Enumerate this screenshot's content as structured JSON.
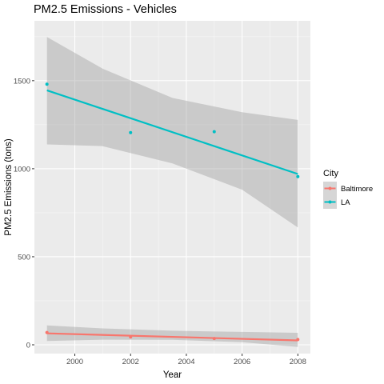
{
  "chart_data": {
    "type": "scatter",
    "title": "PM2.5 Emissions - Vehicles",
    "xlabel": "Year",
    "ylabel": "PM2.5 Emissions (tons)",
    "x_ticks": [
      2000,
      2002,
      2004,
      2006,
      2008
    ],
    "y_ticks": [
      0,
      500,
      1000,
      1500
    ],
    "xlim": [
      1998.55,
      2008.45
    ],
    "ylim": [
      -50,
      1840
    ],
    "grid": true,
    "legend": {
      "title": "City",
      "position": "right"
    },
    "series": [
      {
        "name": "Baltimore",
        "color": "#F8766D",
        "x": [
          1999,
          2002,
          2005,
          2008
        ],
        "y": [
          70,
          44,
          36,
          30
        ],
        "fit_line": {
          "x": [
            1999,
            2008
          ],
          "y": [
            65,
            25
          ]
        },
        "ribbon": {
          "x": [
            1999,
            2001,
            2003.5,
            2006,
            2008
          ],
          "upper": [
            110,
            93,
            80,
            73,
            68
          ],
          "lower": [
            22,
            29,
            28,
            15,
            -12
          ]
        }
      },
      {
        "name": "LA",
        "color": "#00BFC4",
        "x": [
          1999,
          2002,
          2005,
          2008
        ],
        "y": [
          1480,
          1205,
          1210,
          955
        ],
        "fit_line": {
          "x": [
            1999,
            2008
          ],
          "y": [
            1445,
            970
          ]
        },
        "ribbon": {
          "x": [
            1999,
            2001,
            2003.5,
            2006,
            2008
          ],
          "upper": [
            1748,
            1568,
            1402,
            1321,
            1277
          ],
          "lower": [
            1138,
            1128,
            1030,
            881,
            666
          ]
        }
      }
    ]
  }
}
